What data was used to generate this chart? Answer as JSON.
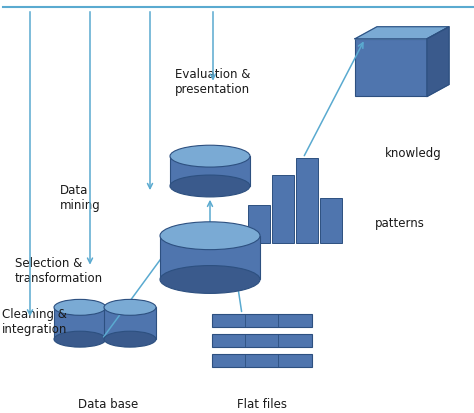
{
  "bg_color": "#ffffff",
  "blue_fill": "#4f75ae",
  "blue_dark": "#3a5a8c",
  "blue_light": "#6a96c8",
  "blue_top": "#7aaad4",
  "blue_edge": "#2d5080",
  "arrow_color": "#5aaad0",
  "text_color": "#1a1a1a",
  "labels": {
    "evaluation": "Evaluation &\npresentation",
    "data_mining": "Data\nmining",
    "selection": "Selection &\ntransformation",
    "cleaning": "Cleaning &\nintegration",
    "database": "Data base",
    "flat_files": "Flat files",
    "patterns": "patterns",
    "knowledge": "knowledg"
  },
  "figsize": [
    4.74,
    4.14
  ],
  "dpi": 100
}
